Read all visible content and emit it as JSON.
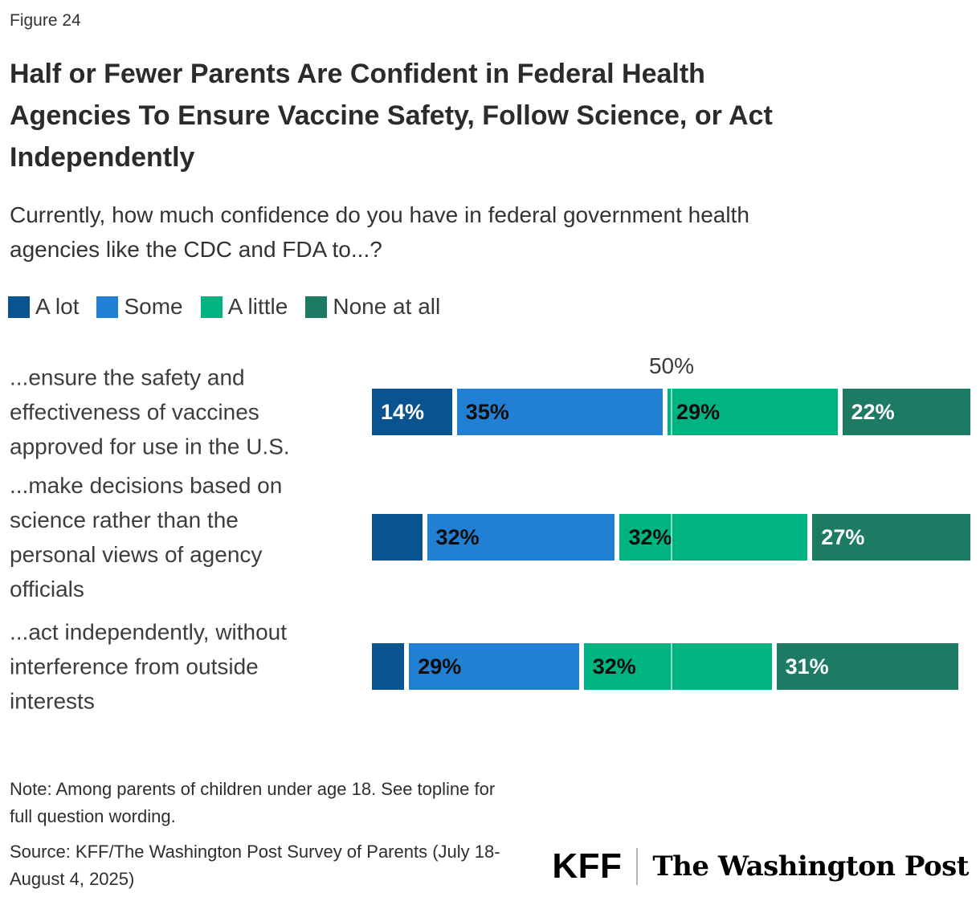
{
  "figure_label": "Figure 24",
  "note": "Note: Among parents of children under age 18. See topline for\nfull question wording.",
  "source": "Source: KFF/The Washington Post Survey of Parents (July 18-\nAugust 4, 2025)",
  "logos": {
    "kff": "KFF",
    "washington_post": "The Washington Post"
  },
  "chart_data": {
    "type": "bar",
    "subtype": "horizontal-stacked",
    "title": "Half or Fewer Parents Are Confident in Federal Health\nAgencies To Ensure Vaccine Safety, Follow Science, or Act\nIndependently",
    "subtitle": "Currently, how much confidence do you have in federal government health\nagencies like the CDC and FDA to...?",
    "legend_position": "top",
    "series_names": [
      "A lot",
      "Some",
      "A little",
      "None at all"
    ],
    "series_colors": [
      "#095390",
      "#2180D3",
      "#00B482",
      "#1D7B64"
    ],
    "series_label_colors": [
      "#ffffff",
      "#0d0d0d",
      "#0d0d0d",
      "#ffffff"
    ],
    "axis": {
      "min": 0,
      "max": 100,
      "marker_value": 50,
      "marker_label": "50%",
      "gridline_color": "rgba(255,255,255,0.55)"
    },
    "rows": [
      {
        "category": "...ensure the safety and\neffectiveness of vaccines\napproved for use in the U.S.",
        "values": [
          14,
          35,
          29,
          22
        ],
        "labels": [
          "14%",
          "35%",
          "29%",
          "22%"
        ]
      },
      {
        "category": "...make decisions based on\nscience rather than the\npersonal views of agency\nofficials",
        "values": [
          9,
          32,
          32,
          27
        ],
        "labels": [
          "",
          "32%",
          "32%",
          "27%"
        ]
      },
      {
        "category": "...act independently, without\ninterference from outside\ninterests",
        "values": [
          6,
          29,
          32,
          31
        ],
        "labels": [
          "",
          "29%",
          "32%",
          "31%"
        ]
      }
    ]
  }
}
